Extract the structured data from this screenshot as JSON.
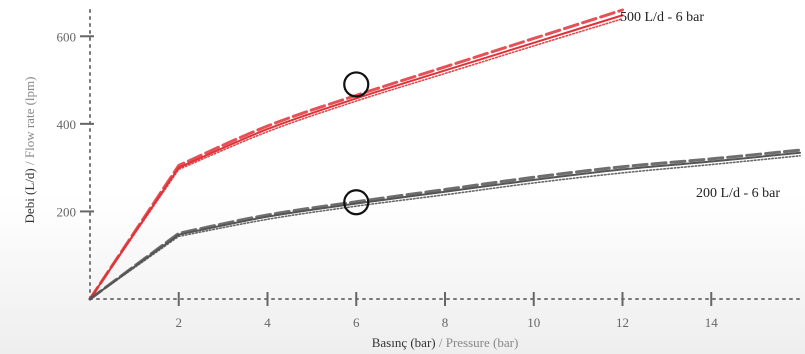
{
  "chart_data": {
    "type": "line",
    "xlabel": {
      "main": "Basınç (bar)",
      "sub": " / Pressure (bar)"
    },
    "ylabel": {
      "main": "Debi (L/d)",
      "sub": " / Flow rate (lpm)"
    },
    "xlim": [
      0,
      16
    ],
    "ylim": [
      0,
      660
    ],
    "x_ticks": [
      2,
      4,
      6,
      8,
      10,
      12,
      14
    ],
    "y_ticks": [
      200,
      400,
      600
    ],
    "grid": false,
    "series": [
      {
        "label": "500 L/d - 6 bar",
        "color": "#e03338",
        "x": [
          0,
          2,
          4,
          6,
          8,
          10,
          12
        ],
        "curves": {
          "dashed": [
            0,
            305,
            395,
            465,
            530,
            595,
            660
          ],
          "solid": [
            0,
            300,
            388,
            458,
            522,
            585,
            648
          ],
          "dotted": [
            0,
            296,
            382,
            452,
            515,
            578,
            640
          ]
        },
        "marker": {
          "x": 6,
          "y": 490
        }
      },
      {
        "label": "200 L/d - 6 bar",
        "color": "#555555",
        "x": [
          0,
          2,
          4,
          6,
          8,
          10,
          12,
          14,
          16
        ],
        "curves": {
          "dashed": [
            0,
            150,
            192,
            222,
            250,
            278,
            302,
            320,
            340
          ],
          "solid": [
            0,
            147,
            188,
            218,
            245,
            272,
            296,
            314,
            334
          ],
          "dotted": [
            0,
            143,
            182,
            212,
            238,
            265,
            288,
            307,
            327
          ]
        },
        "marker": {
          "x": 6,
          "y": 221
        }
      }
    ]
  }
}
